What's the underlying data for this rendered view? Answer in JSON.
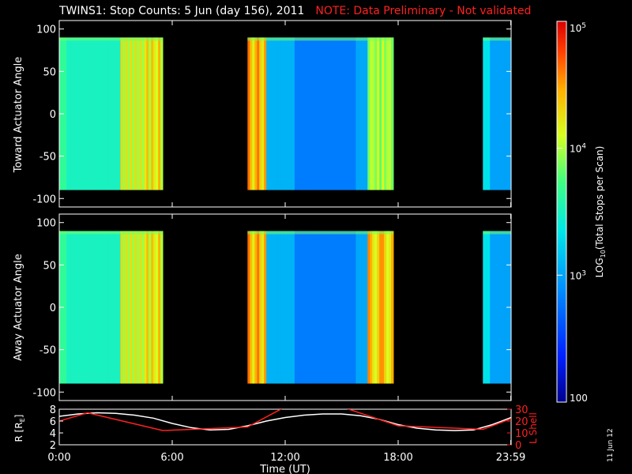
{
  "header": {
    "title": "TWINS1: Stop Counts:  5 Jun (day 156), 2011",
    "note": "NOTE: Data Preliminary - Not validated"
  },
  "datestamp": "11 Jun 12",
  "colors": {
    "background": "#000000",
    "axes": "#ffffff",
    "note": "#ff2020",
    "orbit_r": "#ffffff",
    "orbit_lshell": "#ff2020"
  },
  "chart_data": [
    {
      "type": "heatmap",
      "ylabel": "Toward Actuator Angle",
      "ylim": [
        -110,
        110
      ],
      "yticks": [
        "100",
        "50",
        "0",
        "-50",
        "-100"
      ],
      "ytick_values": [
        100,
        50,
        0,
        -50,
        -100
      ],
      "xlim": [
        0,
        24
      ],
      "data_y_range": [
        -90,
        90
      ],
      "data_segments_hours": [
        [
          0.0,
          5.5
        ],
        [
          10.0,
          17.75
        ],
        [
          22.5,
          24.0
        ]
      ],
      "color_scale": "log",
      "color_range": [
        100,
        100000
      ]
    },
    {
      "type": "heatmap",
      "ylabel": "Away Actuator Angle",
      "ylim": [
        -110,
        110
      ],
      "yticks": [
        "100",
        "50",
        "0",
        "-50",
        "-100"
      ],
      "ytick_values": [
        100,
        50,
        0,
        -50,
        -100
      ],
      "xlim": [
        0,
        24
      ],
      "data_y_range": [
        -90,
        90
      ],
      "data_segments_hours": [
        [
          0.0,
          5.5
        ],
        [
          10.0,
          17.75
        ],
        [
          22.5,
          24.0
        ]
      ],
      "color_scale": "log",
      "color_range": [
        100,
        100000
      ]
    },
    {
      "type": "line",
      "xlabel": "Time (UT)",
      "xlim": [
        0,
        24
      ],
      "xticks": [
        "0:00",
        "6:00",
        "12:00",
        "18:00",
        "23:59"
      ],
      "xtick_values": [
        0,
        6,
        12,
        18,
        23.98
      ],
      "left_axis": {
        "label": "R [R",
        "label_sub": "E",
        "label_tail": "]",
        "ylim": [
          2,
          8
        ],
        "yticks": [
          "2",
          "4",
          "6",
          "8"
        ],
        "ytick_values": [
          2,
          4,
          6,
          8
        ]
      },
      "right_axis": {
        "label": "L Shell",
        "ylim": [
          0,
          30
        ],
        "yticks": [
          "0",
          "10",
          "20",
          "30"
        ],
        "ytick_values": [
          0,
          10,
          20,
          30
        ]
      },
      "series": [
        {
          "axis": "left",
          "x": [
            0,
            1,
            2,
            3,
            4,
            5,
            6,
            7,
            8,
            9,
            10,
            11,
            12,
            13,
            14,
            15,
            16,
            17,
            18,
            19,
            20,
            21,
            22,
            23,
            24
          ],
          "y": [
            6.8,
            7.2,
            7.4,
            7.3,
            7.0,
            6.5,
            5.6,
            4.9,
            4.5,
            4.6,
            5.2,
            6.0,
            6.6,
            7.0,
            7.2,
            7.2,
            6.9,
            6.3,
            5.4,
            4.8,
            4.5,
            4.4,
            4.5,
            5.4,
            6.6
          ]
        },
        {
          "axis": "right",
          "x": [
            0,
            1.5,
            5.5,
            10.0,
            12.0,
            15.0,
            18.0,
            22.5,
            24.0
          ],
          "y": [
            20,
            27,
            12,
            15,
            32,
            32,
            16,
            13,
            22
          ]
        }
      ]
    },
    {
      "type": "colorbar",
      "label": "LOG",
      "label_sub": "10",
      "label_tail": "(Total Stops per Scan)",
      "scale": "log",
      "range": [
        100,
        100000
      ],
      "ticks": [
        {
          "value": 100000,
          "base": "10",
          "exp": "5"
        },
        {
          "value": 10000,
          "base": "10",
          "exp": "4"
        },
        {
          "value": 1000,
          "base": "10",
          "exp": "3"
        },
        {
          "value": 100,
          "base": "100",
          "exp": ""
        }
      ]
    }
  ]
}
